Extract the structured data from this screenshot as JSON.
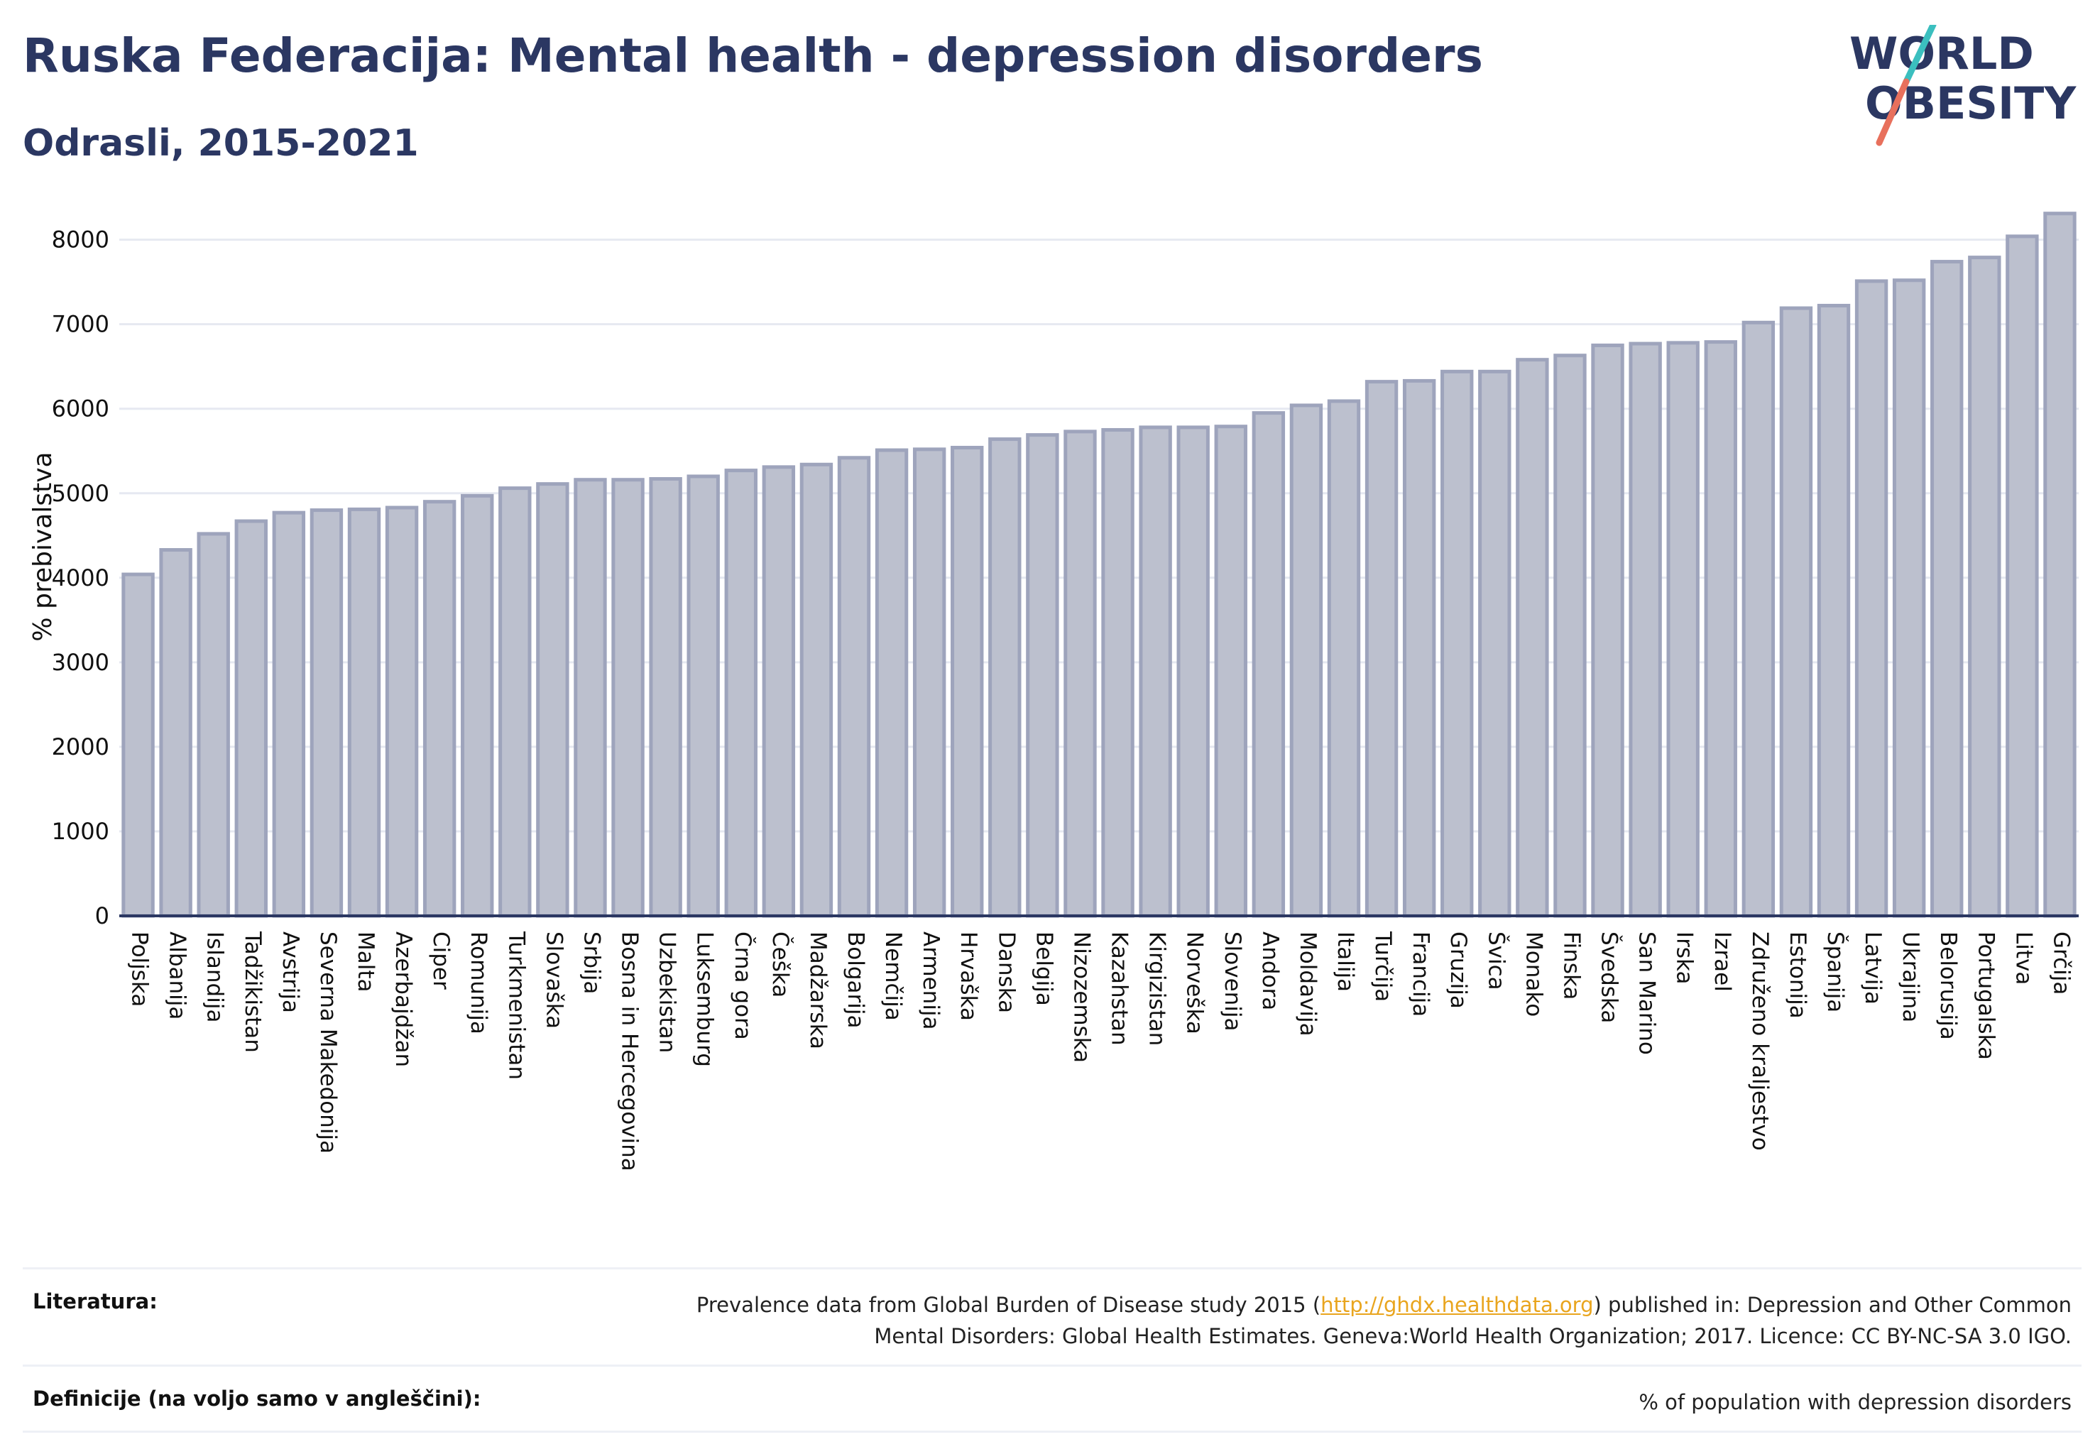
{
  "header": {
    "title": "Ruska Federacija: Mental health - depression disorders",
    "subtitle": "Odrasli, 2015-2021"
  },
  "logo": {
    "line1": "WORLD",
    "line2": "OBESITY",
    "text_color": "#2b3762",
    "slash_teal": "#3bbfbf",
    "slash_coral": "#e8705c"
  },
  "footer": {
    "sources_label": "Literatura:",
    "sources_before": "Prevalence data from Global Burden of Disease study 2015 (",
    "sources_link": "http://ghdx.healthdata.org",
    "sources_after_line1": ") published in: Depression and Other Common",
    "sources_line2": "Mental Disorders: Global Health Estimates. Geneva:World Health Organization; 2017. Licence: CC BY-NC-SA 3.0 IGO.",
    "definitions_label": "Definicije (na voljo samo v angleščini):",
    "definitions_value": "% of population with depression disorders"
  },
  "chart_data": {
    "type": "bar",
    "title": "Ruska Federacija: Mental health - depression disorders",
    "subtitle": "Odrasli, 2015-2021",
    "ylabel": "% prebivalstva",
    "xlabel": "",
    "ylim": [
      0,
      8400
    ],
    "yticks": [
      0,
      1000,
      2000,
      3000,
      4000,
      5000,
      6000,
      7000,
      8000
    ],
    "grid": true,
    "bar_color": "#bcc0ce",
    "bar_edge_color": "#9ea4bc",
    "categories": [
      "Poljska",
      "Albanija",
      "Islandija",
      "Tadžikistan",
      "Avstrija",
      "Severna Makedonija",
      "Malta",
      "Azerbajdžan",
      "Ciper",
      "Romunija",
      "Turkmenistan",
      "Slovaška",
      "Srbija",
      "Bosna in Hercegovina",
      "Uzbekistan",
      "Luksemburg",
      "Črna gora",
      "Češka",
      "Madžarska",
      "Bolgarija",
      "Nemčija",
      "Armenija",
      "Hrvaška",
      "Danska",
      "Belgija",
      "Nizozemska",
      "Kazahstan",
      "Kirgizistan",
      "Norveška",
      "Slovenija",
      "Andora",
      "Moldavija",
      "Italija",
      "Turčija",
      "Francija",
      "Gruzija",
      "Švica",
      "Monako",
      "Finska",
      "Švedska",
      "San Marino",
      "Irska",
      "Izrael",
      "Združeno kraljestvo",
      "Estonija",
      "Španija",
      "Latvija",
      "Ukrajina",
      "Belorusija",
      "Portugalska",
      "Litva",
      "Grčija"
    ],
    "values": [
      4040,
      4330,
      4520,
      4670,
      4770,
      4800,
      4810,
      4830,
      4900,
      4970,
      5060,
      5110,
      5160,
      5160,
      5170,
      5200,
      5270,
      5310,
      5340,
      5420,
      5510,
      5520,
      5540,
      5640,
      5690,
      5730,
      5750,
      5780,
      5780,
      5790,
      5950,
      6040,
      6090,
      6320,
      6330,
      6440,
      6440,
      6580,
      6630,
      6750,
      6770,
      6780,
      6790,
      7020,
      7190,
      7220,
      7510,
      7520,
      7740,
      7790,
      8040,
      8310
    ]
  }
}
